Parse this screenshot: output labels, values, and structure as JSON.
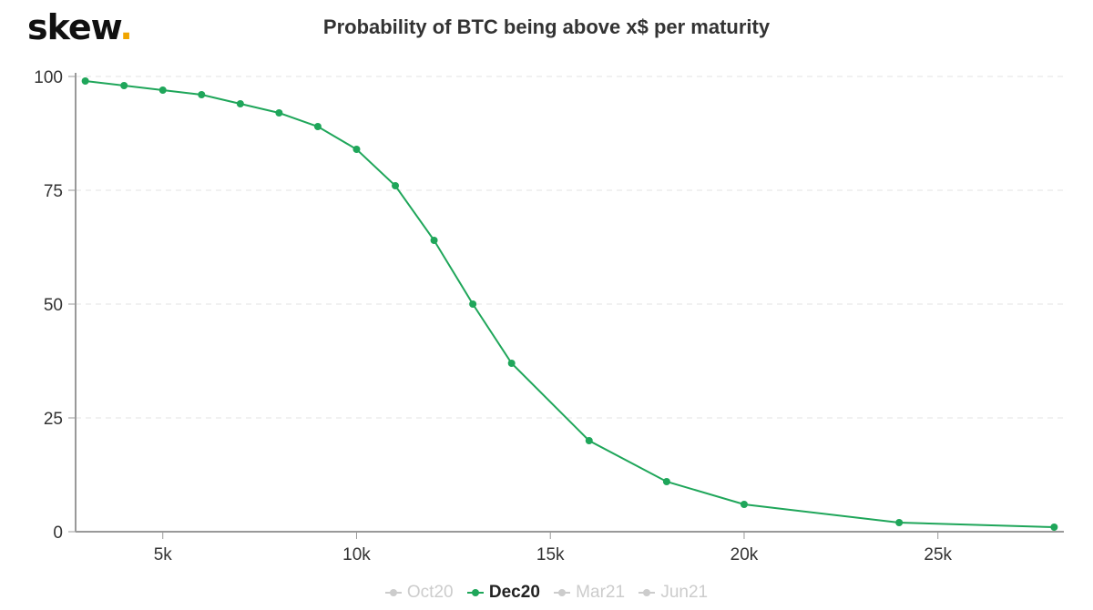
{
  "logo": {
    "text": "skew",
    "dot": "."
  },
  "chart_data": {
    "type": "line",
    "title": "Probability of BTC being above x$ per maturity",
    "xlabel": "",
    "ylabel": "",
    "xlim": [
      2750,
      28250
    ],
    "ylim": [
      0,
      100
    ],
    "xticks": [
      5000,
      10000,
      15000,
      20000,
      25000
    ],
    "xtick_labels": [
      "5k",
      "10k",
      "15k",
      "20k",
      "25k"
    ],
    "yticks": [
      0,
      25,
      50,
      75,
      100
    ],
    "ytick_labels": [
      "0",
      "25",
      "50",
      "75",
      "100"
    ],
    "grid": "horizontal dashed",
    "legend_placement": "bottom",
    "legend": [
      {
        "name": "Oct20",
        "visible": false
      },
      {
        "name": "Dec20",
        "visible": true
      },
      {
        "name": "Mar21",
        "visible": false
      },
      {
        "name": "Jun21",
        "visible": false
      }
    ],
    "series": [
      {
        "name": "Dec20",
        "color": "#1fa65a",
        "x": [
          3000,
          4000,
          5000,
          6000,
          7000,
          8000,
          9000,
          10000,
          11000,
          12000,
          13000,
          14000,
          16000,
          18000,
          20000,
          24000,
          28000
        ],
        "y": [
          99,
          98,
          97,
          96,
          94,
          92,
          89,
          84,
          76,
          64,
          50,
          37,
          20,
          11,
          6,
          2,
          1
        ]
      }
    ]
  }
}
